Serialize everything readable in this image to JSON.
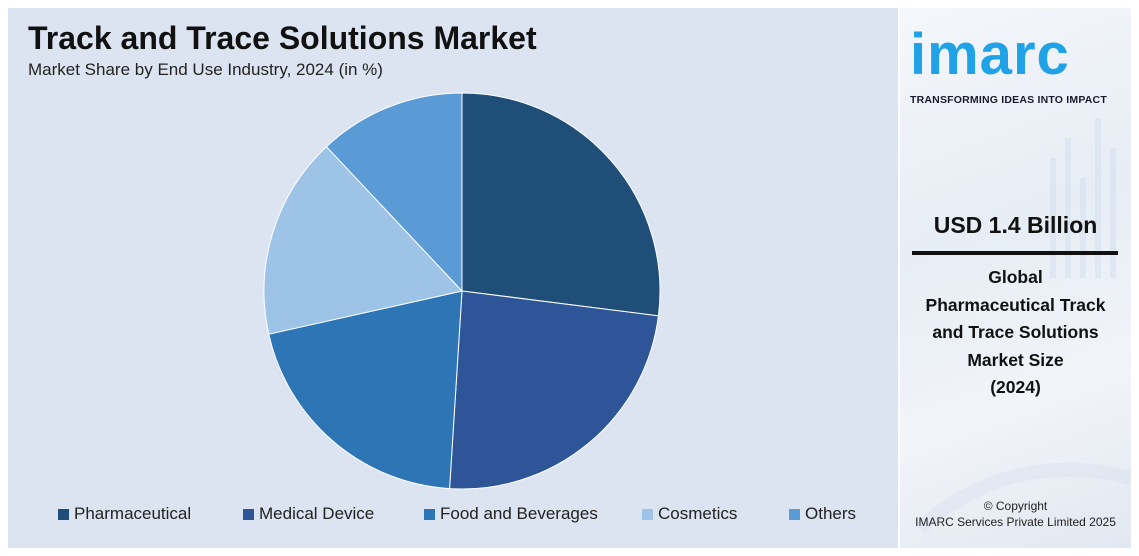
{
  "chart_data": {
    "type": "pie",
    "title": "Track and Trace Solutions Market",
    "subtitle": "Market Share by End Use Industry, 2024 (in %)",
    "categories": [
      "Pharmaceutical",
      "Medical Device",
      "Food and Beverages",
      "Cosmetics",
      "Others"
    ],
    "values": [
      27.0,
      24.0,
      20.5,
      16.5,
      12.0
    ],
    "colors": [
      "#1f4e79",
      "#2e5597",
      "#2e75b6",
      "#9dc3e6",
      "#5b9bd5"
    ],
    "start_angle_deg": 90,
    "direction": "clockwise",
    "legend_position": "bottom"
  },
  "sidebar": {
    "logo_text": "imarc",
    "tagline": "TRANSFORMING IDEAS INTO IMPACT",
    "market_value": "USD 1.4 Billion",
    "market_desc_lines": [
      "Global",
      "Pharmaceutical Track",
      "and Trace Solutions",
      "Market Size",
      "(2024)"
    ],
    "copyright_lines": [
      "© Copyright",
      "IMARC Services Private Limited 2025"
    ],
    "brand_color": "#1fa3e6"
  }
}
